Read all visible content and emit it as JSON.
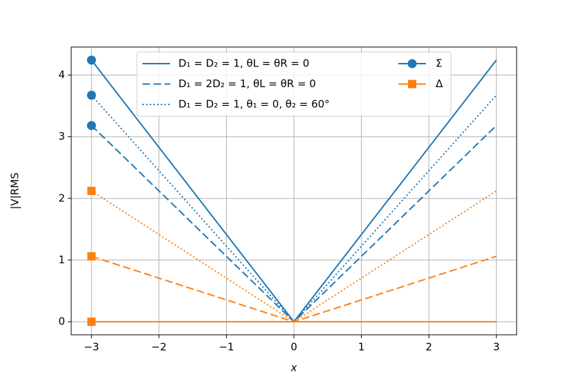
{
  "chart_data": {
    "type": "line",
    "x_label": "x",
    "y_label": "|V|RMS",
    "x": [
      -3,
      0,
      3
    ],
    "xlim": [
      -3.3,
      3.3
    ],
    "ylim": [
      -0.212,
      4.455
    ],
    "xticks": [
      {
        "value": -3,
        "label": "−3"
      },
      {
        "value": -2,
        "label": "−2"
      },
      {
        "value": -1,
        "label": "−1"
      },
      0,
      1,
      2,
      3
    ],
    "yticks": [
      0,
      1,
      2,
      3,
      4
    ],
    "grid": true,
    "markevery": [
      0
    ],
    "series": [
      {
        "color": "#1f77b4",
        "linestyle": "solid",
        "marker": "o",
        "values": [
          4.243,
          0,
          4.243
        ]
      },
      {
        "color": "#1f77b4",
        "linestyle": "dashed",
        "marker": "o",
        "values": [
          3.182,
          0,
          3.182
        ]
      },
      {
        "color": "#1f77b4",
        "linestyle": "dotted",
        "marker": "o",
        "values": [
          3.674,
          0,
          3.674
        ]
      },
      {
        "color": "#ff7f0e",
        "linestyle": "solid",
        "marker": "s",
        "values": [
          0,
          0,
          0
        ]
      },
      {
        "color": "#ff7f0e",
        "linestyle": "dashed",
        "marker": "s",
        "values": [
          1.061,
          0,
          1.061
        ]
      },
      {
        "color": "#ff7f0e",
        "linestyle": "dotted",
        "marker": "s",
        "values": [
          2.121,
          0,
          2.121
        ]
      }
    ],
    "legend_styles": [
      {
        "label": "D₁ =  D₂ = 1, θL = θR = 0",
        "linestyle": "solid"
      },
      {
        "label": "D₁ = 2D₂ = 1, θL = θR = 0",
        "linestyle": "dashed"
      },
      {
        "label": "D₁ =  D₂ = 1, θ₁ = 0, θ₂ = 60°",
        "linestyle": "dotted"
      }
    ],
    "legend_colors": [
      {
        "label": "Σ",
        "color": "#1f77b4",
        "marker": "o"
      },
      {
        "label": "Δ",
        "color": "#ff7f0e",
        "marker": "s"
      }
    ]
  }
}
